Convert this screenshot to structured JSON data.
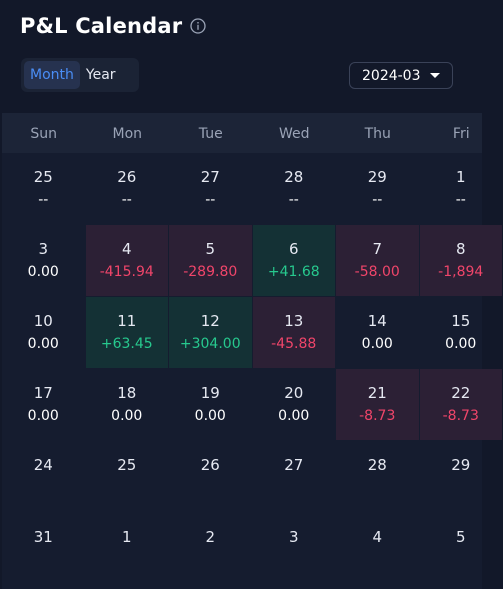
{
  "header": {
    "title": "P&L Calendar",
    "info_icon": "info-circle-icon"
  },
  "view_toggle": {
    "month_label": "Month",
    "year_label": "Year",
    "selected": "Month"
  },
  "month_select": {
    "value": "2024-03"
  },
  "weekdays": [
    "Sun",
    "Mon",
    "Tue",
    "Wed",
    "Thu",
    "Fri"
  ],
  "weeks": [
    [
      {
        "day": "25",
        "value": "--",
        "tone": "none"
      },
      {
        "day": "26",
        "value": "--",
        "tone": "none"
      },
      {
        "day": "27",
        "value": "--",
        "tone": "none"
      },
      {
        "day": "28",
        "value": "--",
        "tone": "none"
      },
      {
        "day": "29",
        "value": "--",
        "tone": "none"
      },
      {
        "day": "1",
        "value": "--",
        "tone": "none"
      }
    ],
    [
      {
        "day": "3",
        "value": "0.00",
        "tone": "none"
      },
      {
        "day": "4",
        "value": "-415.94",
        "tone": "neg"
      },
      {
        "day": "5",
        "value": "-289.80",
        "tone": "neg"
      },
      {
        "day": "6",
        "value": "+41.68",
        "tone": "pos"
      },
      {
        "day": "7",
        "value": "-58.00",
        "tone": "neg"
      },
      {
        "day": "8",
        "value": "-1,894",
        "tone": "neg"
      }
    ],
    [
      {
        "day": "10",
        "value": "0.00",
        "tone": "none"
      },
      {
        "day": "11",
        "value": "+63.45",
        "tone": "pos"
      },
      {
        "day": "12",
        "value": "+304.00",
        "tone": "pos"
      },
      {
        "day": "13",
        "value": "-45.88",
        "tone": "neg"
      },
      {
        "day": "14",
        "value": "0.00",
        "tone": "none"
      },
      {
        "day": "15",
        "value": "0.00",
        "tone": "none"
      }
    ],
    [
      {
        "day": "17",
        "value": "0.00",
        "tone": "none"
      },
      {
        "day": "18",
        "value": "0.00",
        "tone": "none"
      },
      {
        "day": "19",
        "value": "0.00",
        "tone": "none"
      },
      {
        "day": "20",
        "value": "0.00",
        "tone": "none"
      },
      {
        "day": "21",
        "value": "-8.73",
        "tone": "neg"
      },
      {
        "day": "22",
        "value": "-8.73",
        "tone": "neg"
      }
    ],
    [
      {
        "day": "24",
        "value": "",
        "tone": "none"
      },
      {
        "day": "25",
        "value": "",
        "tone": "none"
      },
      {
        "day": "26",
        "value": "",
        "tone": "none"
      },
      {
        "day": "27",
        "value": "",
        "tone": "none"
      },
      {
        "day": "28",
        "value": "",
        "tone": "none"
      },
      {
        "day": "29",
        "value": "",
        "tone": "none"
      }
    ],
    [
      {
        "day": "31",
        "value": "",
        "tone": "none"
      },
      {
        "day": "1",
        "value": "",
        "tone": "none"
      },
      {
        "day": "2",
        "value": "",
        "tone": "none"
      },
      {
        "day": "3",
        "value": "",
        "tone": "none"
      },
      {
        "day": "4",
        "value": "",
        "tone": "none"
      },
      {
        "day": "5",
        "value": "",
        "tone": "none"
      }
    ]
  ],
  "colors": {
    "background": "#121829",
    "positive": "#27c98e",
    "negative": "#f0456a",
    "accent": "#4a8df5"
  }
}
